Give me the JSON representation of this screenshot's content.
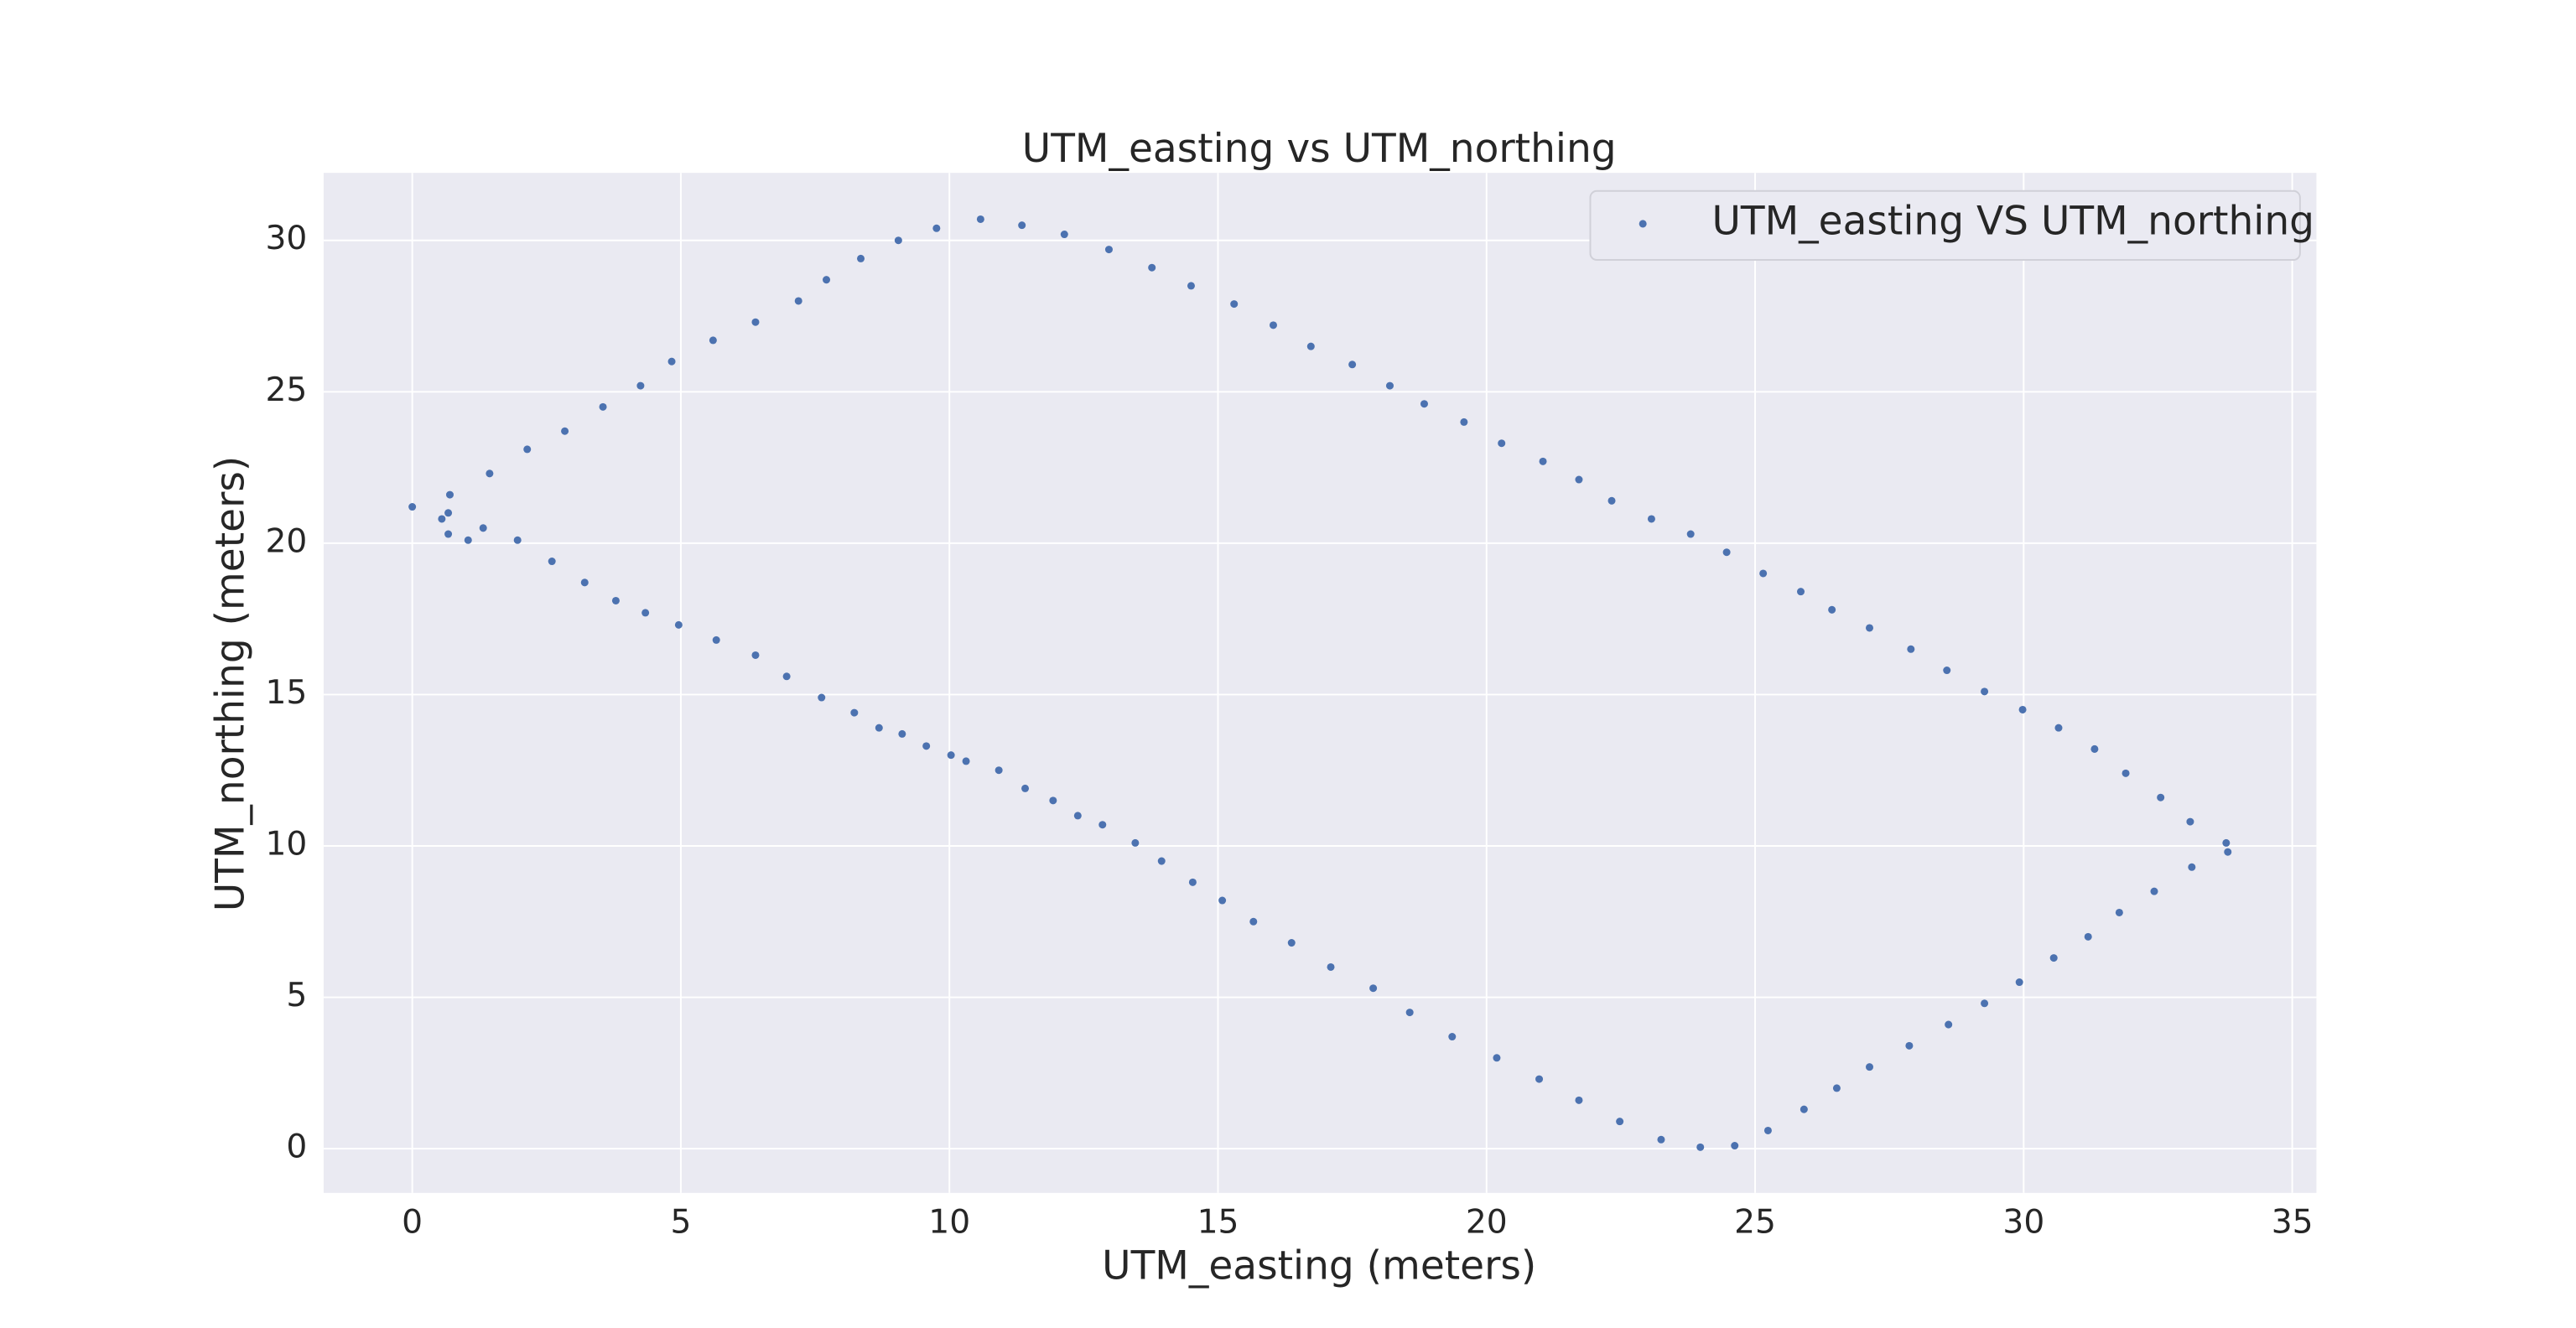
{
  "chart_data": {
    "type": "scatter",
    "title": "UTM_easting vs UTM_northing",
    "xlabel": "UTM_easting (meters)",
    "ylabel": "UTM_northing (meters)",
    "xlim": [
      -1.65,
      35.45
    ],
    "ylim": [
      -1.46,
      32.23
    ],
    "xticks": [
      0,
      5,
      10,
      15,
      20,
      25,
      30,
      35
    ],
    "yticks": [
      0,
      5,
      10,
      15,
      20,
      25,
      30
    ],
    "grid": true,
    "legend": "upper right",
    "background": "#eaeaf2",
    "x": [
      0,
      0.55,
      0.67,
      0.7,
      0.67,
      1.04,
      1.32,
      1.44,
      2.14,
      2.84,
      3.55,
      4.25,
      4.83,
      5.6,
      6.39,
      7.19,
      7.71,
      8.35,
      9.05,
      9.76,
      10.58,
      11.35,
      12.14,
      12.97,
      13.77,
      14.5,
      15.3,
      16.03,
      16.73,
      17.5,
      18.2,
      18.84,
      19.58,
      20.28,
      21.05,
      21.72,
      22.33,
      23.07,
      23.8,
      24.47,
      25.15,
      25.85,
      26.43,
      27.13,
      27.9,
      28.57,
      29.27,
      29.98,
      30.65,
      31.32,
      31.9,
      32.55,
      33.1,
      33.77,
      33.8,
      33.13,
      32.43,
      31.78,
      31.2,
      30.56,
      29.92,
      29.27,
      28.6,
      27.87,
      27.13,
      26.52,
      25.91,
      25.24,
      24.62,
      23.98,
      23.25,
      22.48,
      21.72,
      20.98,
      20.19,
      19.36,
      18.57,
      17.89,
      17.1,
      16.37,
      15.66,
      15.08,
      14.53,
      13.95,
      13.46,
      12.85,
      12.39,
      11.93,
      11.41,
      10.92,
      10.31,
      10.03,
      9.57,
      9.12,
      8.69,
      8.23,
      7.62,
      6.97,
      6.39,
      5.66,
      4.96,
      4.34,
      3.79,
      3.21,
      2.6,
      1.96
    ],
    "series": [
      {
        "name": "UTM_easting VS UTM_northing",
        "color": "#4c72b0",
        "values": [
          21.2,
          20.8,
          21.0,
          21.6,
          20.3,
          20.1,
          20.5,
          22.3,
          23.1,
          23.7,
          24.5,
          25.2,
          26.0,
          26.7,
          27.3,
          28.0,
          28.7,
          29.4,
          30.0,
          30.4,
          30.7,
          30.5,
          30.2,
          29.7,
          29.1,
          28.5,
          27.9,
          27.2,
          26.5,
          25.9,
          25.2,
          24.6,
          24.0,
          23.3,
          22.7,
          22.1,
          21.4,
          20.8,
          20.3,
          19.7,
          19.0,
          18.4,
          17.8,
          17.2,
          16.5,
          15.8,
          15.1,
          14.5,
          13.9,
          13.2,
          12.4,
          11.6,
          10.8,
          10.1,
          9.8,
          9.3,
          8.5,
          7.8,
          7.0,
          6.3,
          5.5,
          4.8,
          4.1,
          3.4,
          2.7,
          2.0,
          1.3,
          0.6,
          0.1,
          0.05,
          0.3,
          0.9,
          1.6,
          2.3,
          3.0,
          3.7,
          4.5,
          5.3,
          6.0,
          6.8,
          7.5,
          8.2,
          8.8,
          9.5,
          10.1,
          10.7,
          11.0,
          11.5,
          11.9,
          12.5,
          12.8,
          13.0,
          13.3,
          13.7,
          13.9,
          14.4,
          14.9,
          15.6,
          16.3,
          16.8,
          17.3,
          17.7,
          18.1,
          18.7,
          19.4,
          20.1
        ]
      }
    ]
  }
}
